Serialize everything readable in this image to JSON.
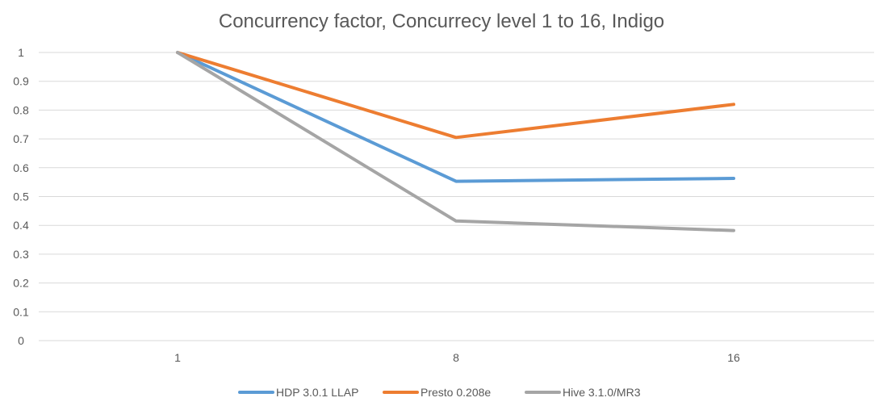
{
  "chart_data": {
    "type": "line",
    "title": "Concurrency factor, Concurrecy level 1 to 16, Indigo",
    "xlabel": "",
    "ylabel": "",
    "categories": [
      "1",
      "8",
      "16"
    ],
    "ylim": [
      0,
      1
    ],
    "yticks": [
      "0",
      "0.1",
      "0.2",
      "0.3",
      "0.4",
      "0.5",
      "0.6",
      "0.7",
      "0.8",
      "0.9",
      "1"
    ],
    "grid": true,
    "legend_position": "bottom",
    "series": [
      {
        "name": "HDP 3.0.1 LLAP",
        "values": [
          1,
          0.553,
          0.563
        ],
        "color": "#5b9bd5"
      },
      {
        "name": "Presto 0.208e",
        "values": [
          1,
          0.705,
          0.82
        ],
        "color": "#ed7d31"
      },
      {
        "name": "Hive 3.1.0/MR3",
        "values": [
          1,
          0.415,
          0.382
        ],
        "color": "#a5a5a5"
      }
    ]
  }
}
